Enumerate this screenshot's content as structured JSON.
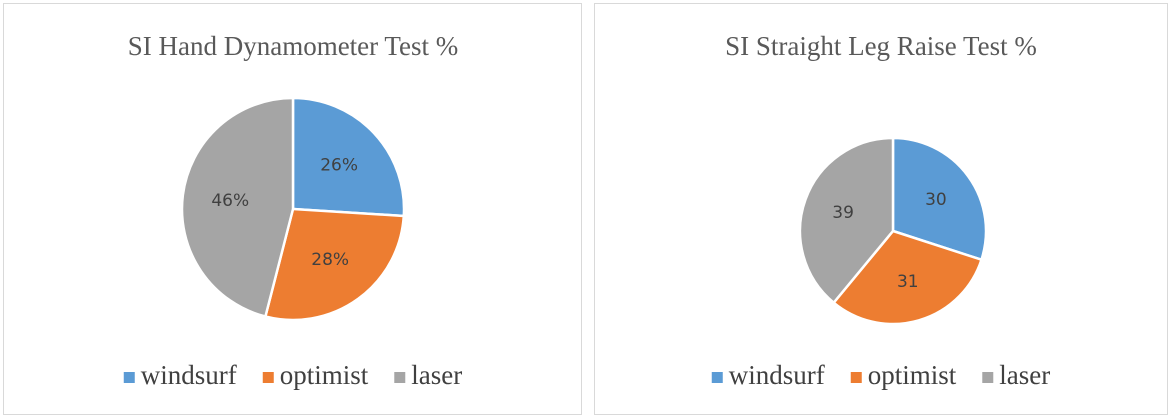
{
  "chart_data": [
    {
      "type": "pie",
      "title": "SI Hand Dynamometer Test %",
      "categories": [
        "windsurf",
        "optimist",
        "laser"
      ],
      "values": [
        26,
        28,
        46
      ],
      "value_labels": [
        "26%",
        "28%",
        "46%"
      ],
      "colors": [
        "#5b9bd5",
        "#ed7d31",
        "#a5a5a5"
      ],
      "legend": "bottom"
    },
    {
      "type": "pie",
      "title": "SI Straight Leg Raise Test %",
      "categories": [
        "windsurf",
        "optimist",
        "laser"
      ],
      "values": [
        30,
        31,
        39
      ],
      "colors": [
        "#5b9bd5",
        "#ed7d31",
        "#a5a5a5"
      ],
      "legend": "bottom"
    }
  ]
}
